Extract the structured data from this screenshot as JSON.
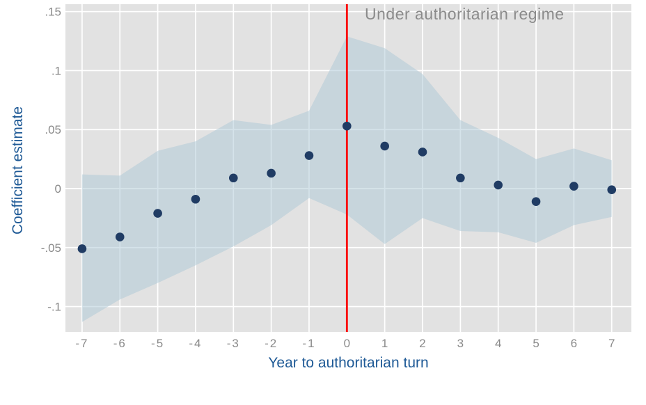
{
  "chart_data": {
    "type": "scatter",
    "annotation": "Under authoritarian regime",
    "xlabel": "Year to authoritarian turn",
    "ylabel": "Coefficient estimate",
    "x": [
      -7,
      -6,
      -5,
      -4,
      -3,
      -2,
      -1,
      0,
      1,
      2,
      3,
      4,
      5,
      6,
      7
    ],
    "series": [
      {
        "name": "coefficient_estimate",
        "values": [
          -0.051,
          -0.041,
          -0.021,
          -0.009,
          0.009,
          0.013,
          0.028,
          0.053,
          0.036,
          0.031,
          0.009,
          0.003,
          -0.011,
          0.002,
          -0.001
        ]
      },
      {
        "name": "ci_upper",
        "values": [
          0.012,
          0.011,
          0.032,
          0.04,
          0.058,
          0.054,
          0.066,
          0.129,
          0.119,
          0.097,
          0.058,
          0.043,
          0.025,
          0.034,
          0.024
        ]
      },
      {
        "name": "ci_lower",
        "values": [
          -0.113,
          -0.094,
          -0.08,
          -0.065,
          -0.049,
          -0.031,
          -0.008,
          -0.022,
          -0.047,
          -0.025,
          -0.036,
          -0.037,
          -0.046,
          -0.031,
          -0.024
        ]
      }
    ],
    "vline_x": 0,
    "xlim": [
      -7.44,
      7.52
    ],
    "ylim": [
      -0.1215,
      0.1563
    ],
    "grid": true,
    "legend": "none",
    "yticks": [
      {
        "label": ".15",
        "value": 0.15
      },
      {
        "label": ".1",
        "value": 0.1
      },
      {
        "label": ".05",
        "value": 0.05
      },
      {
        "label": "0",
        "value": 0
      },
      {
        "label": "-.05",
        "value": -0.05
      },
      {
        "label": "-.1",
        "value": -0.1
      }
    ],
    "xticks": [
      {
        "label": "-7",
        "value": -7
      },
      {
        "label": "-6",
        "value": -6
      },
      {
        "label": "-5",
        "value": -5
      },
      {
        "label": "-4",
        "value": -4
      },
      {
        "label": "-3",
        "value": -3
      },
      {
        "label": "-2",
        "value": -2
      },
      {
        "label": "-1",
        "value": -1
      },
      {
        "label": "0",
        "value": 0
      },
      {
        "label": "1",
        "value": 1
      },
      {
        "label": "2",
        "value": 2
      },
      {
        "label": "3",
        "value": 3
      },
      {
        "label": "4",
        "value": 4
      },
      {
        "label": "5",
        "value": 5
      },
      {
        "label": "6",
        "value": 6
      },
      {
        "label": "7",
        "value": 7
      }
    ],
    "colors": {
      "point": "#203c64",
      "band": "rgba(172,200,214,0.5)",
      "vline": "#fa0505",
      "plot_background": "#e2e2e2",
      "gridline": "#ffffff",
      "tick_label": "#8a8a8a",
      "axis_title": "#1f5a96",
      "annotation": "#8b8b8b"
    }
  }
}
